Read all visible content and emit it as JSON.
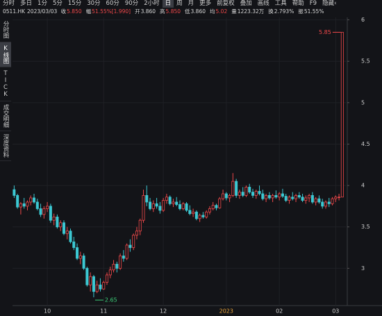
{
  "toolbar": {
    "tabs": [
      "分时",
      "多日",
      "1分",
      "5分",
      "15分",
      "30分",
      "60分",
      "90分",
      "2小时",
      "日",
      "周",
      "月",
      "更多",
      "前复权",
      "叠加",
      "画线",
      "工具",
      "帮助",
      "F9",
      "隐藏‹"
    ],
    "selected": 9
  },
  "header": {
    "symbol": "0511.HK",
    "date": "2023/03/03",
    "fields": [
      {
        "label": "收",
        "value": "5.850",
        "color": "#f0484a"
      },
      {
        "label": "幅",
        "value": "51.55%[1.990]",
        "color": "#f0484a"
      },
      {
        "label": "开",
        "value": "3.860",
        "color": "#d8d8d8"
      },
      {
        "label": "高",
        "value": "5.850",
        "color": "#f0484a"
      },
      {
        "label": "低",
        "value": "3.860",
        "color": "#d8d8d8"
      },
      {
        "label": "均",
        "value": "5.02",
        "color": "#f0484a"
      },
      {
        "label": "量",
        "value": "1223.32万",
        "color": "#d8d8d8"
      },
      {
        "label": "换",
        "value": "2.793%",
        "color": "#d8d8d8"
      },
      {
        "label": "振",
        "value": "51.55%",
        "color": "#d8d8d8"
      }
    ]
  },
  "sidebar": {
    "tabs": [
      "分时图",
      "K线图",
      "TICK",
      "成交明细",
      "深度资料"
    ],
    "selected": 1
  },
  "chart_data": {
    "type": "candlestick",
    "up_color": "#f0484a",
    "down_color": "#3cc8d2",
    "grid": true,
    "ylim": [
      2.55,
      6.03
    ],
    "yticks": [
      3,
      3.5,
      4,
      4.5,
      5,
      5.5,
      6
    ],
    "xlim": [
      -0.5,
      100.5
    ],
    "xticks": [
      {
        "value": 10,
        "label": "10"
      },
      {
        "value": 27,
        "label": "11"
      },
      {
        "value": 45,
        "label": "12"
      },
      {
        "value": 64,
        "label": "2023"
      },
      {
        "value": 80,
        "label": "02"
      },
      {
        "value": 97,
        "label": "03"
      }
    ],
    "highlight_xtick": 3,
    "highlight_color": "#e8a33a",
    "annotations": [
      {
        "label": "5.85",
        "index": 99,
        "value": 5.85,
        "color": "#f0484a"
      },
      {
        "label": "2.65",
        "index": 24,
        "value": 2.65,
        "color": "#3ccf7a"
      }
    ],
    "candles": [
      [
        3.95,
        4.0,
        3.85,
        3.88
      ],
      [
        3.88,
        3.9,
        3.72,
        3.74
      ],
      [
        3.74,
        3.8,
        3.65,
        3.78
      ],
      [
        3.78,
        3.85,
        3.72,
        3.75
      ],
      [
        3.75,
        3.82,
        3.7,
        3.8
      ],
      [
        3.8,
        3.88,
        3.76,
        3.85
      ],
      [
        3.85,
        3.9,
        3.78,
        3.8
      ],
      [
        3.8,
        3.84,
        3.7,
        3.72
      ],
      [
        3.72,
        3.78,
        3.62,
        3.65
      ],
      [
        3.65,
        3.75,
        3.6,
        3.72
      ],
      [
        3.72,
        3.8,
        3.68,
        3.75
      ],
      [
        3.75,
        3.78,
        3.55,
        3.58
      ],
      [
        3.58,
        3.66,
        3.52,
        3.62
      ],
      [
        3.62,
        3.65,
        3.48,
        3.5
      ],
      [
        3.5,
        3.58,
        3.45,
        3.55
      ],
      [
        3.55,
        3.58,
        3.4,
        3.42
      ],
      [
        3.42,
        3.5,
        3.35,
        3.45
      ],
      [
        3.45,
        3.48,
        3.3,
        3.32
      ],
      [
        3.32,
        3.38,
        3.22,
        3.25
      ],
      [
        3.25,
        3.3,
        3.1,
        3.12
      ],
      [
        3.12,
        3.2,
        3.05,
        3.15
      ],
      [
        3.15,
        3.18,
        2.98,
        3.0
      ],
      [
        3.0,
        3.02,
        2.78,
        2.8
      ],
      [
        2.8,
        2.95,
        2.72,
        2.9
      ],
      [
        2.9,
        2.92,
        2.65,
        2.72
      ],
      [
        2.72,
        2.85,
        2.7,
        2.8
      ],
      [
        2.8,
        2.88,
        2.72,
        2.75
      ],
      [
        2.75,
        2.85,
        2.74,
        2.83
      ],
      [
        2.83,
        2.95,
        2.8,
        2.92
      ],
      [
        2.92,
        3.02,
        2.88,
        2.98
      ],
      [
        2.98,
        3.1,
        2.95,
        3.05
      ],
      [
        3.05,
        3.08,
        2.95,
        3.0
      ],
      [
        3.0,
        3.18,
        2.98,
        3.15
      ],
      [
        3.15,
        3.22,
        3.08,
        3.12
      ],
      [
        3.12,
        3.3,
        3.1,
        3.28
      ],
      [
        3.28,
        3.35,
        3.2,
        3.25
      ],
      [
        3.25,
        3.42,
        3.22,
        3.4
      ],
      [
        3.4,
        3.5,
        3.35,
        3.45
      ],
      [
        3.45,
        3.6,
        3.4,
        3.58
      ],
      [
        3.58,
        3.95,
        3.55,
        3.88
      ],
      [
        3.88,
        4.0,
        3.75,
        3.8
      ],
      [
        3.8,
        3.85,
        3.7,
        3.72
      ],
      [
        3.72,
        3.82,
        3.68,
        3.78
      ],
      [
        3.78,
        3.85,
        3.72,
        3.75
      ],
      [
        3.75,
        3.8,
        3.66,
        3.7
      ],
      [
        3.7,
        3.85,
        3.68,
        3.82
      ],
      [
        3.82,
        3.9,
        3.78,
        3.86
      ],
      [
        3.86,
        3.88,
        3.76,
        3.78
      ],
      [
        3.78,
        3.84,
        3.74,
        3.8
      ],
      [
        3.8,
        3.86,
        3.75,
        3.77
      ],
      [
        3.77,
        3.82,
        3.7,
        3.72
      ],
      [
        3.72,
        3.8,
        3.7,
        3.78
      ],
      [
        3.78,
        3.8,
        3.68,
        3.7
      ],
      [
        3.7,
        3.76,
        3.64,
        3.66
      ],
      [
        3.66,
        3.72,
        3.62,
        3.68
      ],
      [
        3.68,
        3.7,
        3.58,
        3.6
      ],
      [
        3.6,
        3.66,
        3.56,
        3.64
      ],
      [
        3.64,
        3.68,
        3.6,
        3.62
      ],
      [
        3.62,
        3.7,
        3.6,
        3.68
      ],
      [
        3.68,
        3.75,
        3.65,
        3.72
      ],
      [
        3.72,
        3.8,
        3.7,
        3.76
      ],
      [
        3.76,
        3.78,
        3.7,
        3.73
      ],
      [
        3.73,
        3.86,
        3.72,
        3.84
      ],
      [
        3.84,
        3.95,
        3.82,
        3.9
      ],
      [
        3.9,
        3.92,
        3.82,
        3.85
      ],
      [
        3.85,
        3.9,
        3.8,
        3.88
      ],
      [
        3.88,
        4.15,
        3.86,
        4.05
      ],
      [
        4.05,
        4.08,
        3.85,
        3.88
      ],
      [
        3.88,
        3.95,
        3.84,
        3.92
      ],
      [
        3.92,
        3.98,
        3.86,
        3.88
      ],
      [
        3.88,
        4.0,
        3.86,
        3.98
      ],
      [
        3.98,
        4.02,
        3.9,
        3.92
      ],
      [
        3.92,
        3.96,
        3.85,
        3.88
      ],
      [
        3.88,
        3.95,
        3.84,
        3.93
      ],
      [
        3.93,
        4.0,
        3.88,
        3.9
      ],
      [
        3.9,
        3.95,
        3.82,
        3.84
      ],
      [
        3.84,
        3.9,
        3.8,
        3.88
      ],
      [
        3.88,
        3.92,
        3.83,
        3.85
      ],
      [
        3.85,
        3.9,
        3.8,
        3.88
      ],
      [
        3.88,
        3.94,
        3.84,
        3.86
      ],
      [
        3.86,
        3.92,
        3.82,
        3.9
      ],
      [
        3.9,
        3.96,
        3.85,
        3.87
      ],
      [
        3.87,
        3.9,
        3.8,
        3.82
      ],
      [
        3.82,
        3.88,
        3.78,
        3.86
      ],
      [
        3.86,
        3.92,
        3.82,
        3.84
      ],
      [
        3.84,
        3.9,
        3.8,
        3.88
      ],
      [
        3.88,
        3.92,
        3.84,
        3.86
      ],
      [
        3.86,
        3.9,
        3.8,
        3.82
      ],
      [
        3.82,
        3.88,
        3.78,
        3.85
      ],
      [
        3.85,
        3.9,
        3.8,
        3.88
      ],
      [
        3.88,
        3.92,
        3.78,
        3.8
      ],
      [
        3.8,
        3.86,
        3.76,
        3.84
      ],
      [
        3.84,
        3.88,
        3.78,
        3.8
      ],
      [
        3.8,
        3.84,
        3.72,
        3.75
      ],
      [
        3.75,
        3.82,
        3.72,
        3.8
      ],
      [
        3.8,
        3.85,
        3.74,
        3.78
      ],
      [
        3.78,
        3.86,
        3.76,
        3.84
      ],
      [
        3.84,
        3.88,
        3.8,
        3.86
      ],
      [
        3.86,
        3.9,
        3.82,
        3.86
      ],
      [
        3.86,
        5.85,
        3.86,
        5.85
      ]
    ]
  }
}
